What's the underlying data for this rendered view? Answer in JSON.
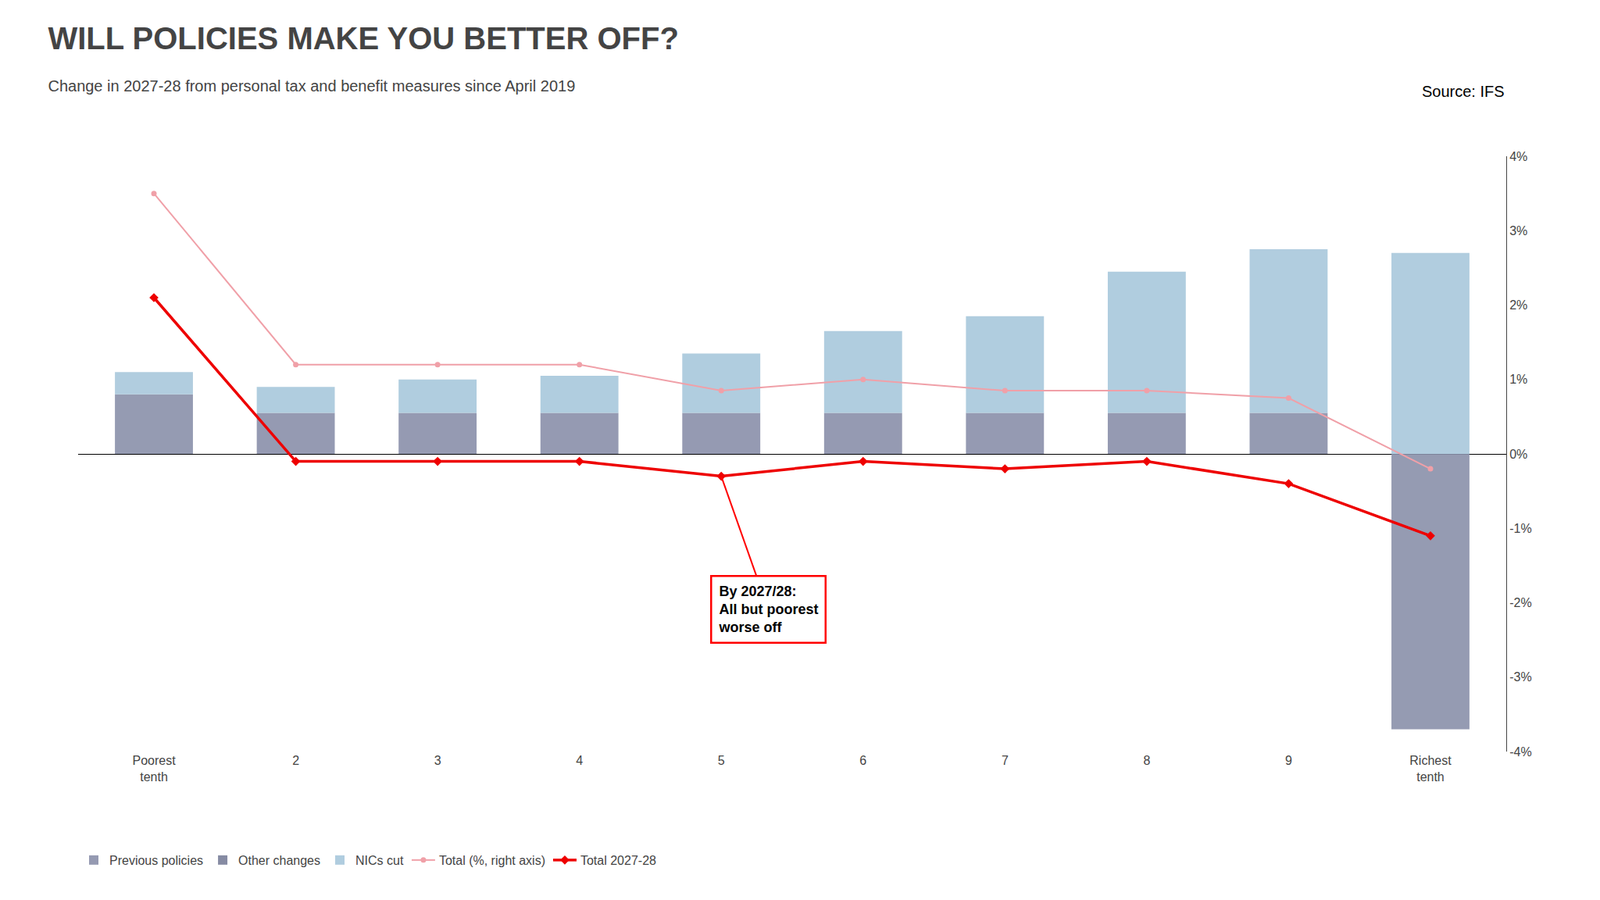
{
  "chart_data": {
    "type": "bar",
    "title": "WILL POLICIES MAKE YOU BETTER OFF?",
    "subtitle": "Change in 2027-28 from personal tax and benefit measures since April 2019",
    "source": "Source: IFS",
    "categories": [
      "Poorest\ntenth",
      "2",
      "3",
      "4",
      "5",
      "6",
      "7",
      "8",
      "9",
      "Richest\ntenth"
    ],
    "stacked": true,
    "grid": false,
    "legend": "lower left",
    "series": [
      {
        "name": "Previous policies",
        "type": "bar",
        "color": "#8a90aa",
        "values": [
          0.8,
          0.55,
          0.55,
          0.55,
          0.55,
          0.55,
          0.55,
          0.55,
          0.55,
          -3.7
        ]
      },
      {
        "name": "Other changes",
        "type": "bar",
        "color": "#7a7f9a",
        "values": [
          null,
          null,
          null,
          null,
          null,
          null,
          null,
          null,
          null,
          null
        ]
      },
      {
        "name": "NICs cut",
        "type": "bar",
        "color": "#a8c8dc",
        "values": [
          0.3,
          0.35,
          0.45,
          0.5,
          0.8,
          1.1,
          1.3,
          1.9,
          2.2,
          2.7
        ]
      },
      {
        "name": "Total (%, right axis)",
        "type": "line",
        "color": "#f0a0a8",
        "marker": "circle",
        "values": [
          3.5,
          1.2,
          1.2,
          1.2,
          0.85,
          1.0,
          0.85,
          0.85,
          0.75,
          -0.2
        ]
      },
      {
        "name": "Total 2027-28",
        "type": "line",
        "color": "#ee0000",
        "marker": "diamond",
        "values": [
          2.1,
          -0.1,
          -0.1,
          -0.1,
          -0.3,
          -0.1,
          -0.2,
          -0.1,
          -0.4,
          -1.1
        ]
      }
    ],
    "ylim": [
      -4,
      4
    ],
    "yticks": [
      {
        "value": -4,
        "label": "-4%"
      },
      {
        "value": -3,
        "label": "-3%"
      },
      {
        "value": -2,
        "label": "-2%"
      },
      {
        "value": -1,
        "label": "-1%"
      },
      {
        "value": 0,
        "label": "0%"
      },
      {
        "value": 1,
        "label": "1%"
      },
      {
        "value": 2,
        "label": "2%"
      },
      {
        "value": 3,
        "label": "3%"
      },
      {
        "value": 4,
        "label": "4%"
      }
    ],
    "annotations": [
      {
        "text": "By 2027/28:\nAll but poorest\nworse off",
        "x": "5",
        "y": -0.3
      }
    ]
  }
}
